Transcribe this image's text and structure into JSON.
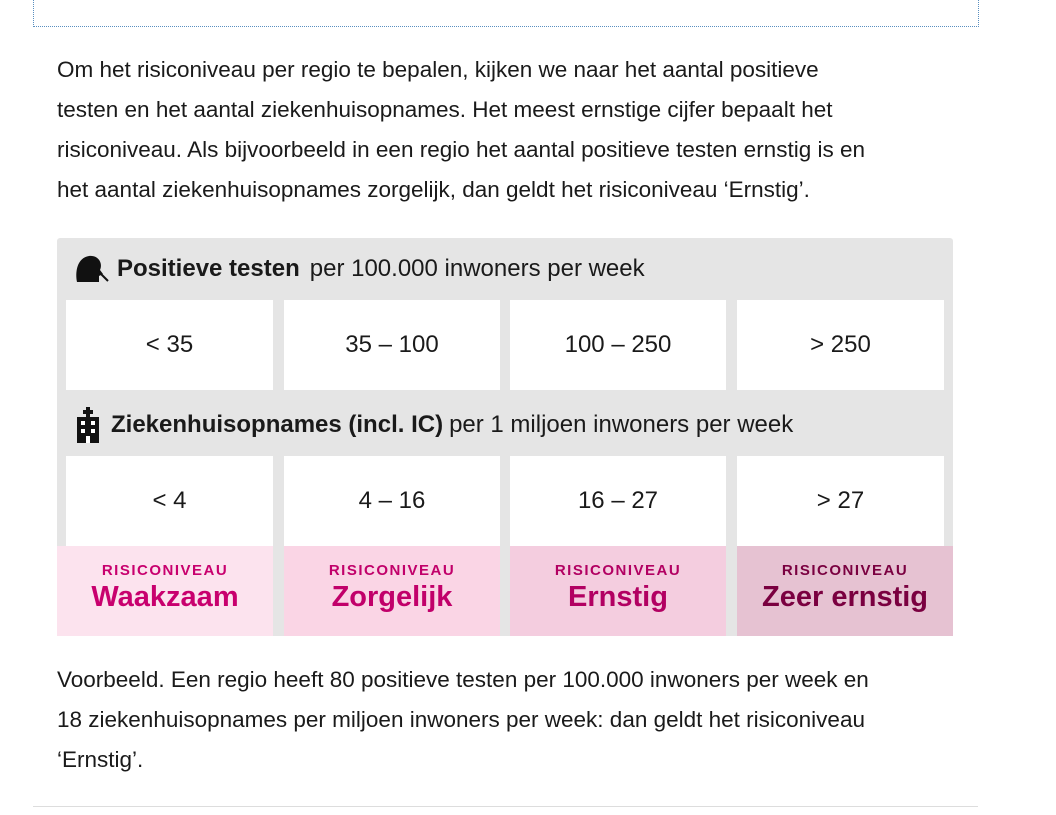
{
  "intro": {
    "lines": [
      "Om het risiconiveau per regio te bepalen, kijken we naar het aantal positieve",
      "testen en het aantal ziekenhuisopnames. Het meest ernstige cijfer bepaalt het",
      "risiconiveau. Als bijvoorbeeld in een regio het aantal positieve testen ernstig is en",
      "het aantal ziekenhuisopnames zorgelijk, dan geldt het risiconiveau ‘Ernstig’."
    ]
  },
  "table": {
    "tests": {
      "title": "Positieve testen",
      "unit": "per 100.000 inwoners per week",
      "cells": [
        "< 35",
        "35 – 100",
        "100 – 250",
        "> 250"
      ]
    },
    "hospital": {
      "title": "Ziekenhuisopnames (incl. IC)",
      "unit": "per 1 miljoen inwoners per week",
      "cells": [
        "< 4",
        "4 – 16",
        "16 – 27",
        "> 27"
      ]
    },
    "levels": [
      {
        "kicker": "RISICONIVEAU",
        "name": "Waakzaam"
      },
      {
        "kicker": "RISICONIVEAU",
        "name": "Zorgelijk"
      },
      {
        "kicker": "RISICONIVEAU",
        "name": "Ernstig"
      },
      {
        "kicker": "RISICONIVEAU",
        "name": "Zeer ernstig"
      }
    ]
  },
  "example": {
    "lines": [
      "Voorbeeld. Een regio heeft 80 positieve testen per 100.000 inwoners per week en",
      "18 ziekenhuisopnames per miljoen inwoners per week: dan geldt het risiconiveau",
      "‘Ernstig’."
    ]
  }
}
